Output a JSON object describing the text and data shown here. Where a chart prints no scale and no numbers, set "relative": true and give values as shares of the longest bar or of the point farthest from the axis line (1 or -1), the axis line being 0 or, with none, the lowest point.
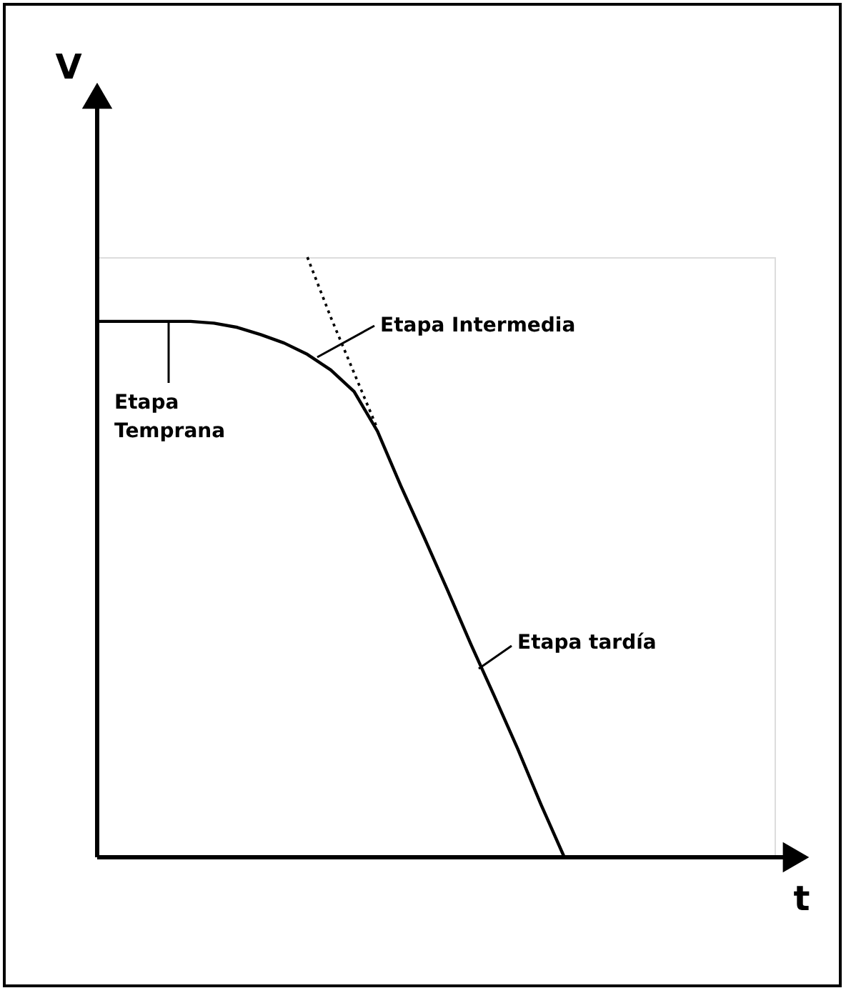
{
  "chart_data": {
    "type": "line",
    "relative": true,
    "xlabel": "t",
    "ylabel": "V",
    "tick_labels": false,
    "marker": "none",
    "categories": [
      null,
      null,
      null,
      null,
      null,
      null,
      null,
      null,
      null,
      null,
      null,
      null,
      null,
      null,
      null,
      null,
      null,
      null,
      null,
      null,
      null,
      null,
      null,
      null,
      null,
      null,
      null,
      null,
      null,
      null
    ],
    "series": [
      {
        "color": "#000000",
        "line_style": "solid",
        "values": [
          0.893,
          0.893,
          0.893,
          0.893,
          0.893,
          0.89,
          0.883,
          0.871,
          0.857,
          0.838,
          0.812,
          0.776,
          0.71,
          0.619,
          0.533,
          0.445,
          0.355,
          0.269,
          0.181,
          0.088,
          0,
          null,
          null,
          null,
          null,
          null,
          null,
          null,
          null,
          null
        ]
      },
      {
        "color": "#000000",
        "line_style": "dotted",
        "values": [
          null,
          null,
          null,
          null,
          null,
          null,
          null,
          null,
          null,
          1,
          0.9,
          0.807,
          0.714,
          null,
          null,
          null,
          null,
          null,
          null,
          null,
          null,
          null,
          null,
          null,
          null,
          null,
          null,
          null,
          null,
          null
        ]
      }
    ],
    "annotations": [
      "Etapa\nTemprana",
      "Etapa Intermedia",
      "Etapa tardía"
    ]
  }
}
